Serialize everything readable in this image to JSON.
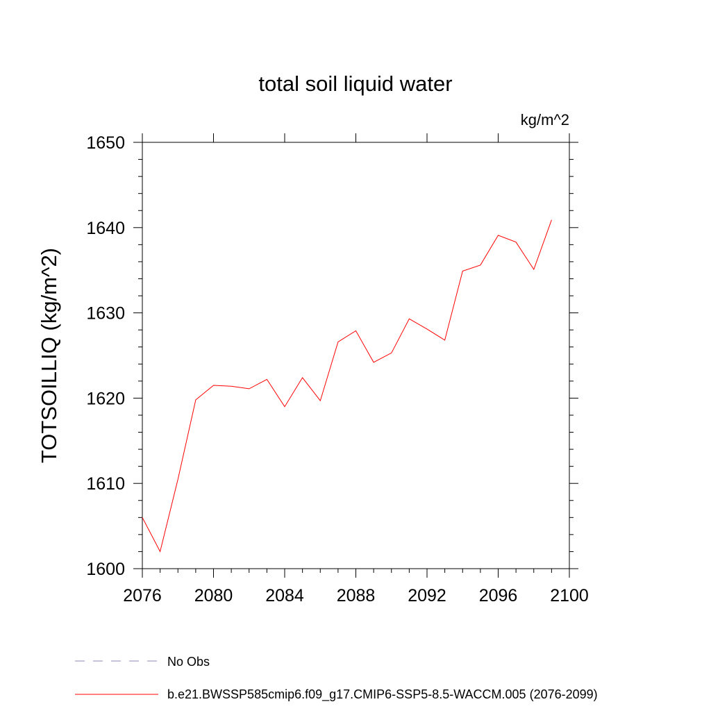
{
  "chart_data": {
    "type": "line",
    "title": "total soil liquid water",
    "units_label": "kg/m^2",
    "xlabel": "",
    "ylabel": "TOTSOILLIQ  (kg/m^2)",
    "xlim": [
      2076,
      2100
    ],
    "ylim": [
      1600,
      1650
    ],
    "x_ticks": [
      2076,
      2080,
      2084,
      2088,
      2092,
      2096,
      2100
    ],
    "y_ticks": [
      1600,
      1610,
      1620,
      1630,
      1640,
      1650
    ],
    "grid": false,
    "series": [
      {
        "name": "b.e21.BWSSP585cmip6.f09_g17.CMIP6-SSP5-8.5-WACCM.005 (2076-2099)",
        "color": "#ff0000",
        "style": "solid",
        "x": [
          2076,
          2077,
          2078,
          2079,
          2080,
          2081,
          2082,
          2083,
          2084,
          2085,
          2086,
          2087,
          2088,
          2089,
          2090,
          2091,
          2092,
          2093,
          2094,
          2095,
          2096,
          2097,
          2098,
          2099
        ],
        "y": [
          1606.0,
          1602.0,
          1610.5,
          1619.8,
          1621.5,
          1621.4,
          1621.1,
          1622.2,
          1619.0,
          1622.4,
          1619.7,
          1626.6,
          1627.9,
          1624.2,
          1625.3,
          1629.3,
          1628.1,
          1626.8,
          1634.9,
          1635.6,
          1639.1,
          1638.3,
          1635.1,
          1640.9
        ]
      }
    ],
    "legend": [
      {
        "label": "No Obs",
        "color": "#8a8ab8",
        "style": "dashed"
      },
      {
        "label": "b.e21.BWSSP585cmip6.f09_g17.CMIP6-SSP5-8.5-WACCM.005 (2076-2099)",
        "color": "#ff0000",
        "style": "solid"
      }
    ],
    "legend_position": "bottom-left"
  }
}
